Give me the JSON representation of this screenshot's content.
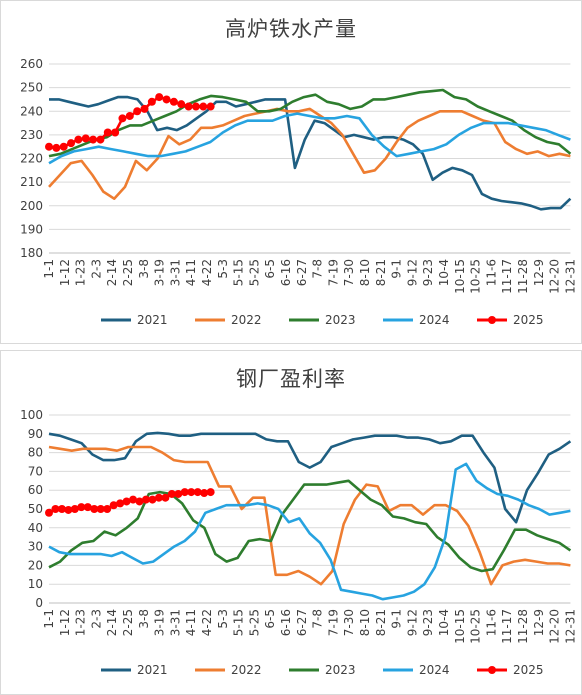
{
  "colors": {
    "2021": "#1f5f82",
    "2022": "#ee7d31",
    "2023": "#2e7d2e",
    "2024": "#27a3e0",
    "2025": "#ff0000",
    "grid": "#d9d9d9",
    "axis": "#bfbfbf"
  },
  "chart_data": [
    {
      "type": "line",
      "title": "高炉铁水产量",
      "xlabel": "",
      "ylabel": "",
      "ylim": [
        180,
        260
      ],
      "yticks": [
        180,
        190,
        200,
        210,
        220,
        230,
        240,
        250,
        260
      ],
      "grid": true,
      "legend_position": "bottom",
      "x_tick_labels": [
        "1-1",
        "1-12",
        "1-23",
        "2-3",
        "2-14",
        "2-25",
        "3-8",
        "3-19",
        "3-31",
        "4-11",
        "4-22",
        "5-3",
        "5-15",
        "5-25",
        "6-5",
        "6-16",
        "6-27",
        "7-8",
        "7-19",
        "7-30",
        "8-10",
        "8-21",
        "9-1",
        "9-12",
        "9-23",
        "10-4",
        "10-15",
        "10-25",
        "11-6",
        "11-17",
        "11-28",
        "12-9",
        "12-20",
        "12-31"
      ],
      "series": [
        {
          "name": "2021",
          "values": [
            245,
            245,
            244,
            243,
            242,
            243,
            244.5,
            246,
            246,
            245,
            240,
            232,
            233,
            232,
            234,
            237,
            240,
            244,
            244,
            242,
            243,
            244,
            245,
            245,
            245,
            216,
            228,
            236,
            235,
            232,
            229,
            230,
            229,
            228,
            229,
            229,
            228,
            226,
            222,
            211,
            214,
            216,
            215,
            213,
            205,
            203,
            202,
            201.5,
            201,
            200,
            198.5,
            199,
            199,
            203
          ]
        },
        {
          "name": "2022",
          "values": [
            208,
            213,
            218,
            219,
            213,
            206,
            203,
            208,
            219,
            215,
            220,
            229.5,
            226,
            228,
            233,
            233,
            234,
            236,
            238,
            239,
            240,
            241,
            240,
            240,
            241,
            238,
            235,
            230,
            222,
            214,
            215,
            220,
            227,
            233,
            236,
            238,
            240,
            240,
            240,
            238,
            236,
            235,
            227,
            224,
            222,
            223,
            221,
            222,
            221
          ]
        },
        {
          "name": "2023",
          "values": [
            221,
            222,
            224,
            226,
            228,
            229,
            232,
            234,
            234,
            236,
            238,
            240,
            243,
            245,
            246.5,
            246,
            245,
            244,
            240,
            240,
            241,
            244,
            246,
            247,
            244,
            243,
            241,
            242,
            245,
            245,
            246,
            247,
            248,
            248.5,
            249,
            246,
            245,
            242,
            240,
            238,
            236,
            232,
            229,
            227,
            226,
            222
          ]
        },
        {
          "name": "2024",
          "values": [
            218,
            221,
            223,
            224,
            225,
            224,
            223,
            222,
            221,
            221,
            222,
            223,
            225,
            227,
            231,
            234,
            236,
            236,
            236,
            238,
            239,
            238,
            237,
            237,
            238,
            237,
            230,
            225,
            221,
            222,
            223,
            224,
            226,
            230,
            233,
            235,
            235,
            235,
            234,
            233,
            232,
            230,
            228
          ]
        },
        {
          "name": "2025",
          "values": [
            225,
            224.5,
            225,
            226.5,
            228,
            228.5,
            228,
            228,
            231,
            231,
            237,
            238,
            240,
            241,
            244,
            246,
            245,
            244,
            243,
            242,
            242,
            242,
            242
          ]
        }
      ]
    },
    {
      "type": "line",
      "title": "钢厂盈利率",
      "xlabel": "",
      "ylabel": "",
      "ylim": [
        0,
        100
      ],
      "yticks": [
        0,
        10,
        20,
        30,
        40,
        50,
        60,
        70,
        80,
        90,
        100
      ],
      "grid": true,
      "legend_position": "bottom",
      "x_tick_labels": [
        "1-1",
        "1-12",
        "1-23",
        "2-3",
        "2-14",
        "2-25",
        "3-8",
        "3-19",
        "3-31",
        "4-11",
        "4-22",
        "5-3",
        "5-15",
        "5-25",
        "6-5",
        "6-16",
        "6-27",
        "7-8",
        "7-19",
        "7-30",
        "8-10",
        "8-21",
        "9-1",
        "9-12",
        "9-23",
        "10-4",
        "10-15",
        "10-25",
        "11-6",
        "11-17",
        "11-28",
        "12-9",
        "12-20",
        "12-31"
      ],
      "series": [
        {
          "name": "2021",
          "values": [
            90,
            89,
            87,
            85,
            79,
            76,
            76,
            77,
            86,
            90,
            90.5,
            90,
            89,
            89,
            90,
            90,
            90,
            90,
            90,
            90,
            87,
            86,
            86,
            75,
            72,
            75,
            83,
            85,
            87,
            88,
            89,
            89,
            89,
            88,
            88,
            87,
            85,
            86,
            89,
            89,
            80,
            72,
            50,
            43,
            60,
            69,
            79,
            82,
            86
          ]
        },
        {
          "name": "2022",
          "values": [
            83,
            82,
            81,
            82,
            82,
            82,
            81,
            83,
            83,
            83,
            80,
            76,
            75,
            75,
            75,
            62,
            62,
            50,
            56,
            56,
            15,
            15,
            17,
            14,
            10,
            17,
            42,
            55,
            63,
            62,
            49,
            52,
            52,
            47,
            52,
            52,
            49,
            41,
            27,
            10,
            20,
            22,
            23,
            22,
            21,
            21,
            20
          ]
        },
        {
          "name": "2023",
          "values": [
            19,
            22,
            28,
            32,
            33,
            38,
            36,
            40,
            45,
            58,
            59,
            58,
            53,
            44,
            40,
            26,
            22,
            24,
            33,
            34,
            33,
            47,
            55,
            63,
            63,
            63,
            64,
            65,
            60,
            55,
            52,
            46,
            45,
            43,
            42,
            35,
            31,
            24,
            19,
            17,
            18,
            28,
            39,
            39,
            36,
            34,
            32,
            28
          ]
        },
        {
          "name": "2024",
          "values": [
            30,
            27,
            26,
            26,
            26,
            26,
            25,
            27,
            24,
            21,
            22,
            26,
            30,
            33,
            38,
            48,
            50,
            52,
            52,
            52,
            53,
            52,
            50,
            43,
            45,
            37,
            32,
            23,
            7,
            6,
            5,
            4,
            2,
            3,
            4,
            6,
            10,
            19,
            35,
            71,
            74,
            65,
            61,
            58,
            57,
            55,
            52,
            50,
            47,
            48,
            49
          ]
        },
        {
          "name": "2025",
          "values": [
            48,
            50,
            50,
            49.5,
            50,
            51,
            51,
            50,
            50,
            50,
            52,
            53,
            54,
            55,
            54,
            55,
            55,
            56,
            56,
            58,
            58,
            59,
            59,
            59,
            58.5,
            59
          ]
        }
      ]
    }
  ]
}
